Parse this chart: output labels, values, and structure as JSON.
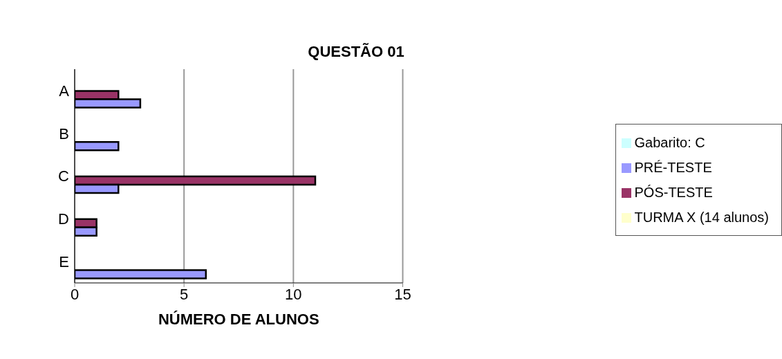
{
  "chart_data": {
    "type": "bar",
    "orientation": "horizontal",
    "title": "QUESTÃO 01",
    "xlabel": "NÚMERO DE ALUNOS",
    "categories": [
      "A",
      "B",
      "C",
      "D",
      "E"
    ],
    "series": [
      {
        "name": "Gabarito: C",
        "color": "#ccffff",
        "values": [
          null,
          null,
          null,
          null,
          null
        ]
      },
      {
        "name": "TURMA X (14 alunos)",
        "color": "#ffffcc",
        "values": [
          null,
          null,
          null,
          null,
          null
        ]
      },
      {
        "name": "PÓS-TESTE",
        "color": "#993366",
        "values": [
          2,
          null,
          11,
          1,
          null
        ]
      },
      {
        "name": "PRÉ-TESTE",
        "color": "#9999ff",
        "values": [
          3,
          2,
          2,
          1,
          6
        ]
      }
    ],
    "xlim": [
      0,
      15
    ],
    "xticks": [
      0,
      5,
      10,
      15
    ],
    "grid": "x",
    "legend": "right"
  }
}
